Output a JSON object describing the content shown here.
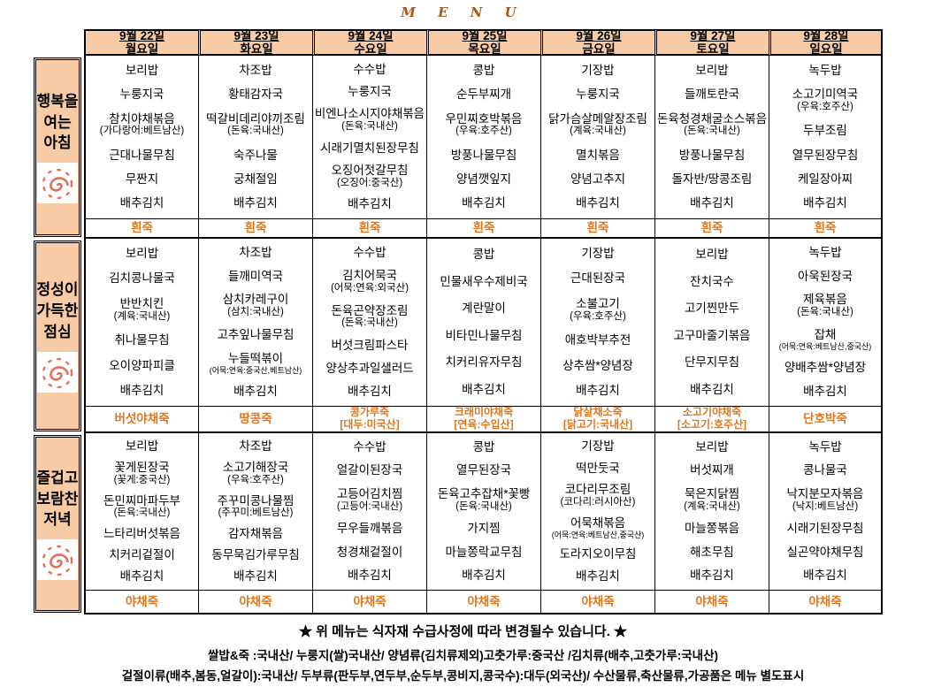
{
  "title": "M  E  N  U",
  "colors": {
    "header_bg": "#f6cba6",
    "porridge_text": "#e0761a",
    "title_text": "#a85a1a",
    "icon_accent": "#e4705a",
    "border": "#000000"
  },
  "days": [
    {
      "date": "9월 22일",
      "weekday": "월요일"
    },
    {
      "date": "9월 23일",
      "weekday": "화요일"
    },
    {
      "date": "9월 24일",
      "weekday": "수요일"
    },
    {
      "date": "9월 25일",
      "weekday": "목요일"
    },
    {
      "date": "9월 26일",
      "weekday": "금요일"
    },
    {
      "date": "9월 27일",
      "weekday": "토요일"
    },
    {
      "date": "9월 28일",
      "weekday": "일요일"
    }
  ],
  "sections": [
    {
      "label_lines": [
        "행복을",
        "여는",
        "아침"
      ],
      "icon": "sun-spiral-icon",
      "menus": [
        [
          "보리밥",
          "누룽지국",
          "참치야채볶음\n(가다랑어:베트남산)",
          "근대나물무침",
          "무짠지",
          "배추김치"
        ],
        [
          "차조밥",
          "황태감자국",
          "떡갈비데리야끼조림\n(돈육:국내산)",
          "숙주나물",
          "궁채절임",
          "배추김치"
        ],
        [
          "수수밥",
          "누룽지국",
          "비엔나소시지야채볶음\n(돈육:국내산)",
          "시래기멸치된장무침",
          "오징어젓갈무침\n(오징어:중국산)",
          "배추김치"
        ],
        [
          "콩밥",
          "순두부찌개",
          "우민찌호박볶음\n(우육:호주산)",
          "방풍나물무침",
          "양념깻잎지",
          "배추김치"
        ],
        [
          "기장밥",
          "누룽지국",
          "닭가슴살메알장조림\n(계육:국내산)",
          "멸치볶음",
          "양념고추지",
          "배추김치"
        ],
        [
          "보리밥",
          "들깨토란국",
          "돈육청경채굴소스볶음\n(돈육:국내산)",
          "방풍나물무침",
          "돌자반/땅콩조림",
          "배추김치"
        ],
        [
          "녹두밥",
          "소고기미역국\n(우육:호주산)",
          "두부조림",
          "열무된장무침",
          "케일장아찌",
          "배추김치"
        ]
      ],
      "porridges": [
        "흰죽",
        "흰죽",
        "흰죽",
        "흰죽",
        "흰죽",
        "흰죽",
        "흰죽"
      ]
    },
    {
      "label_lines": [
        "정성이",
        "가득한",
        "점심"
      ],
      "icon": "sun-spiral-icon",
      "menus": [
        [
          "보리밥",
          "김치콩나물국",
          "반반치킨\n(계육:국내산)",
          "취나물무침",
          "오이양파피클",
          "배추김치"
        ],
        [
          "차조밥",
          "들깨미역국",
          "삼치카레구이\n(삼치:국내산)",
          "고추잎나물무침",
          "누들떡볶이\n(어묵:연육:중국산,베트남산)",
          "배추김치"
        ],
        [
          "수수밥",
          "김치어묵국\n(어묵:연육:외국산)",
          "돈육곤약장조림\n(돈육:국내산)",
          "버섯크림파스타",
          "양상추과일샐러드",
          "배추김치"
        ],
        [
          "콩밥",
          "민물새우수제비국",
          "계란말이",
          "비타민나물무침",
          "치커리유자무침",
          "배추김치"
        ],
        [
          "기장밥",
          "근대된장국",
          "소불고기\n(우육:호주산)",
          "애호박부추전",
          "상추쌈*양념장",
          "배추김치"
        ],
        [
          "보리밥",
          "잔치국수",
          "고기찐만두",
          "고구마줄기볶음",
          "단무지무침",
          "배추김치"
        ],
        [
          "녹두밥",
          "아욱된장국",
          "제육볶음\n(돈육:국내산)",
          "잡채\n(어묵:연육:베트남산,중국산)",
          "양배추쌈*양념장",
          "배추김치"
        ]
      ],
      "porridges": [
        "버섯야채죽",
        "땅콩죽",
        "콩가루죽\n[대두:미국산]",
        "크래미야채죽\n[연육:수입산]",
        "닭살채소죽\n[닭고기:국내산]",
        "소고기야채죽\n[소고기:호주산]",
        "단호박죽"
      ]
    },
    {
      "label_lines": [
        "즐겁고",
        "보람찬",
        "저녁"
      ],
      "icon": "sun-spiral-icon",
      "menus": [
        [
          "보리밥",
          "꽃게된장국\n(꽃게:중국산)",
          "돈민찌마파두부\n(돈육:국내산)",
          "느타리버섯볶음",
          "치커리겉절이",
          "배추김치"
        ],
        [
          "차조밥",
          "소고기해장국\n(우육:호주산)",
          "주꾸미콩나물찜\n(주꾸미:베트남산)",
          "감자채볶음",
          "동무묵김가루무침",
          "배추김치"
        ],
        [
          "수수밥",
          "얼갈이된장국",
          "고등어김치찜\n(고등어:국내산)",
          "무우들깨볶음",
          "청경채겉절이",
          "배추김치"
        ],
        [
          "콩밥",
          "열무된장국",
          "돈육고추잡채*꽃빵\n(돈육:국내산)",
          "가지찜",
          "마늘쫑락교무침",
          "배추김치"
        ],
        [
          "기장밥",
          "떡만둣국",
          "코다리무조림\n(코다리:러시아산)",
          "어묵채볶음\n(어묵:연육:베트남산,중국산)",
          "도라지오이무침",
          "배추김치"
        ],
        [
          "보리밥",
          "버섯찌개",
          "묵은지닭찜\n(계육:국내산)",
          "마늘쫑볶음",
          "해초무침",
          "배추김치"
        ],
        [
          "녹두밥",
          "콩나물국",
          "낙지분모자볶음\n(낙지:베트남산)",
          "시래기된장무침",
          "실곤약야채무침",
          "배추김치"
        ]
      ],
      "porridges": [
        "야채죽",
        "야채죽",
        "야채죽",
        "야채죽",
        "야채죽",
        "야채죽",
        "야채죽"
      ]
    }
  ],
  "footer": {
    "notice": "★ 위 메뉴는 식자재 수급사정에 따라 변경될수 있습니다. ★",
    "line2": "쌀밥&죽 :국내산/ 누룽지(쌀)국내산/ 양념류(김치류제외)고춧가루:중국산 /김치류(배추,고춧가루:국내산)",
    "line3": "겉절이류(배추,봄동,얼갈이):국내산/ 두부류(판두부,연두부,순두부,콩비지,콩국수):대두(외국산)/ 수산물류,축산물류,가공품은 메뉴 별도표시"
  }
}
